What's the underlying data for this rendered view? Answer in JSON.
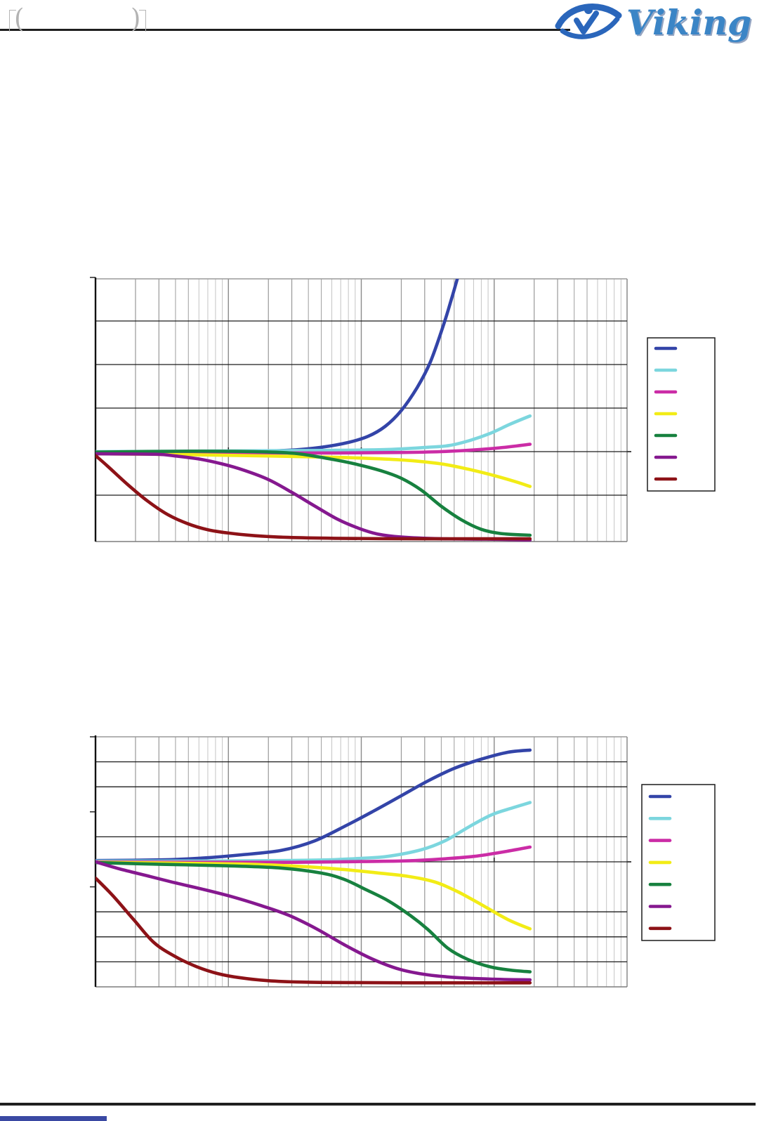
{
  "header": {
    "placeholder_brackets": "( )",
    "logo_text": "Viking",
    "logo_text_color": "#3b85c6",
    "logo_icon_color": "#2a66bb"
  },
  "footer": {
    "rule_color": "#1f1f1f",
    "accent_bar_color": "#3a49a3"
  },
  "chart_data": [
    {
      "type": "line",
      "title": "",
      "xlabel": "",
      "ylabel": "",
      "x_axis": {
        "scale": "log",
        "decades": 4,
        "tick_labels_visible": false,
        "axis_tick_decades": [
          1,
          2,
          3
        ]
      },
      "y_axis": {
        "divisions_above_zero": 4,
        "divisions_below_zero": 2,
        "gridline_divisions": [
          3,
          2,
          1,
          0,
          -1
        ],
        "left_tick_divisions": [
          4
        ],
        "right_tick_divisions": [
          0
        ],
        "tick_labels_visible": false
      },
      "grid": true,
      "legend_position": "right",
      "legend_labels": [
        "",
        "",
        "",
        "",
        "",
        "",
        ""
      ],
      "series": [
        {
          "name": "series-1-blue",
          "color": "#3344a8",
          "points": [
            [
              0,
              -0.02
            ],
            [
              0.6,
              -0.02
            ],
            [
              1.1,
              0.0
            ],
            [
              1.45,
              0.03
            ],
            [
              1.7,
              0.1
            ],
            [
              1.9,
              0.21
            ],
            [
              2.05,
              0.35
            ],
            [
              2.18,
              0.58
            ],
            [
              2.3,
              0.94
            ],
            [
              2.42,
              1.47
            ],
            [
              2.52,
              2.06
            ],
            [
              2.62,
              2.92
            ],
            [
              2.68,
              3.52
            ],
            [
              2.73,
              4.05
            ]
          ]
        },
        {
          "name": "series-2-cyan",
          "color": "#7cd6de",
          "points": [
            [
              0,
              0.0
            ],
            [
              1.2,
              0.02
            ],
            [
              1.8,
              0.03
            ],
            [
              2.2,
              0.05
            ],
            [
              2.5,
              0.1
            ],
            [
              2.66,
              0.14
            ],
            [
              2.82,
              0.26
            ],
            [
              2.97,
              0.42
            ],
            [
              3.12,
              0.63
            ],
            [
              3.27,
              0.82
            ]
          ]
        },
        {
          "name": "series-3-magenta",
          "color": "#cb2ca6",
          "points": [
            [
              0,
              -0.03
            ],
            [
              1.0,
              -0.03
            ],
            [
              1.8,
              -0.03
            ],
            [
              2.3,
              -0.02
            ],
            [
              2.6,
              0.0
            ],
            [
              2.85,
              0.04
            ],
            [
              3.05,
              0.09
            ],
            [
              3.27,
              0.17
            ]
          ]
        },
        {
          "name": "series-4-yellow",
          "color": "#f2ec16",
          "points": [
            [
              0,
              -0.05
            ],
            [
              0.7,
              -0.07
            ],
            [
              1.3,
              -0.1
            ],
            [
              1.8,
              -0.13
            ],
            [
              2.1,
              -0.16
            ],
            [
              2.35,
              -0.2
            ],
            [
              2.6,
              -0.28
            ],
            [
              2.8,
              -0.4
            ],
            [
              3.0,
              -0.55
            ],
            [
              3.15,
              -0.68
            ],
            [
              3.27,
              -0.8
            ]
          ]
        },
        {
          "name": "series-5-green",
          "color": "#17813f",
          "points": [
            [
              0,
              -0.01
            ],
            [
              0.7,
              0.01
            ],
            [
              1.2,
              0.0
            ],
            [
              1.5,
              -0.04
            ],
            [
              1.75,
              -0.16
            ],
            [
              1.95,
              -0.28
            ],
            [
              2.15,
              -0.44
            ],
            [
              2.3,
              -0.61
            ],
            [
              2.45,
              -0.88
            ],
            [
              2.6,
              -1.25
            ],
            [
              2.75,
              -1.56
            ],
            [
              2.9,
              -1.78
            ],
            [
              3.05,
              -1.88
            ],
            [
              3.27,
              -1.92
            ]
          ]
        },
        {
          "name": "series-6-purple",
          "color": "#85188f",
          "points": [
            [
              0,
              -0.05
            ],
            [
              0.45,
              -0.06
            ],
            [
              0.6,
              -0.1
            ],
            [
              0.78,
              -0.17
            ],
            [
              0.95,
              -0.28
            ],
            [
              1.12,
              -0.43
            ],
            [
              1.3,
              -0.64
            ],
            [
              1.48,
              -0.94
            ],
            [
              1.65,
              -1.25
            ],
            [
              1.82,
              -1.55
            ],
            [
              1.98,
              -1.76
            ],
            [
              2.12,
              -1.89
            ],
            [
              2.3,
              -1.96
            ],
            [
              2.6,
              -2.0
            ],
            [
              2.95,
              -2.01
            ],
            [
              3.27,
              -2.03
            ]
          ]
        },
        {
          "name": "series-7-darkred",
          "color": "#8d1217",
          "points": [
            [
              0,
              -0.09
            ],
            [
              0.09,
              -0.33
            ],
            [
              0.24,
              -0.75
            ],
            [
              0.39,
              -1.13
            ],
            [
              0.54,
              -1.44
            ],
            [
              0.69,
              -1.65
            ],
            [
              0.84,
              -1.79
            ],
            [
              1.0,
              -1.87
            ],
            [
              1.2,
              -1.93
            ],
            [
              1.45,
              -1.97
            ],
            [
              1.8,
              -1.99
            ],
            [
              2.3,
              -2.0
            ],
            [
              2.8,
              -2.0
            ],
            [
              3.27,
              -2.0
            ]
          ]
        }
      ]
    },
    {
      "type": "line",
      "title": "",
      "xlabel": "",
      "ylabel": "",
      "x_axis": {
        "scale": "log",
        "decades": 4,
        "tick_labels_visible": false,
        "axis_tick_decades": [
          1,
          2,
          3
        ]
      },
      "y_axis": {
        "divisions_above_zero": 5,
        "divisions_below_zero": 5,
        "gridline_divisions": [
          4,
          3,
          1,
          0,
          -2,
          -3,
          -4
        ],
        "left_tick_divisions": [
          5,
          2,
          -1
        ],
        "right_tick_divisions": [
          0
        ],
        "tick_labels_visible": false
      },
      "grid": true,
      "legend_position": "right",
      "legend_labels": [
        "",
        "",
        "",
        "",
        "",
        "",
        ""
      ],
      "series": [
        {
          "name": "series-1-blue",
          "color": "#3344a8",
          "points": [
            [
              0,
              0.05
            ],
            [
              0.5,
              0.08
            ],
            [
              0.8,
              0.15
            ],
            [
              1.1,
              0.28
            ],
            [
              1.4,
              0.46
            ],
            [
              1.65,
              0.84
            ],
            [
              1.9,
              1.49
            ],
            [
              2.1,
              2.05
            ],
            [
              2.3,
              2.64
            ],
            [
              2.5,
              3.23
            ],
            [
              2.7,
              3.74
            ],
            [
              2.9,
              4.1
            ],
            [
              3.1,
              4.38
            ],
            [
              3.27,
              4.47
            ]
          ]
        },
        {
          "name": "series-2-cyan",
          "color": "#7cd6de",
          "points": [
            [
              0,
              0.03
            ],
            [
              0.8,
              0.03
            ],
            [
              1.4,
              0.05
            ],
            [
              1.75,
              0.08
            ],
            [
              2.0,
              0.14
            ],
            [
              2.2,
              0.22
            ],
            [
              2.45,
              0.48
            ],
            [
              2.63,
              0.84
            ],
            [
              2.81,
              1.4
            ],
            [
              2.98,
              1.88
            ],
            [
              3.14,
              2.16
            ],
            [
              3.27,
              2.37
            ]
          ]
        },
        {
          "name": "series-3-magenta",
          "color": "#cb2ca6",
          "points": [
            [
              0,
              0.0
            ],
            [
              0.8,
              -0.02
            ],
            [
              1.5,
              -0.02
            ],
            [
              2.0,
              0.01
            ],
            [
              2.35,
              0.04
            ],
            [
              2.6,
              0.11
            ],
            [
              2.85,
              0.22
            ],
            [
              3.05,
              0.38
            ],
            [
              3.27,
              0.59
            ]
          ]
        },
        {
          "name": "series-4-yellow",
          "color": "#f2ec16",
          "points": [
            [
              0,
              -0.02
            ],
            [
              0.6,
              -0.05
            ],
            [
              1.1,
              -0.09
            ],
            [
              1.5,
              -0.17
            ],
            [
              1.85,
              -0.3
            ],
            [
              2.1,
              -0.43
            ],
            [
              2.35,
              -0.58
            ],
            [
              2.55,
              -0.8
            ],
            [
              2.72,
              -1.18
            ],
            [
              2.9,
              -1.7
            ],
            [
              3.1,
              -2.3
            ],
            [
              3.27,
              -2.68
            ]
          ]
        },
        {
          "name": "series-5-green",
          "color": "#17813f",
          "points": [
            [
              0,
              -0.03
            ],
            [
              0.5,
              -0.1
            ],
            [
              1.0,
              -0.16
            ],
            [
              1.4,
              -0.25
            ],
            [
              1.7,
              -0.45
            ],
            [
              1.87,
              -0.7
            ],
            [
              2.03,
              -1.1
            ],
            [
              2.2,
              -1.55
            ],
            [
              2.37,
              -2.15
            ],
            [
              2.5,
              -2.7
            ],
            [
              2.65,
              -3.45
            ],
            [
              2.8,
              -3.9
            ],
            [
              2.97,
              -4.2
            ],
            [
              3.12,
              -4.33
            ],
            [
              3.27,
              -4.4
            ]
          ]
        },
        {
          "name": "series-6-purple",
          "color": "#85188f",
          "points": [
            [
              0,
              0.0
            ],
            [
              0.18,
              -0.28
            ],
            [
              0.39,
              -0.56
            ],
            [
              0.6,
              -0.84
            ],
            [
              0.81,
              -1.1
            ],
            [
              1.03,
              -1.4
            ],
            [
              1.24,
              -1.74
            ],
            [
              1.45,
              -2.13
            ],
            [
              1.66,
              -2.67
            ],
            [
              1.87,
              -3.31
            ],
            [
              2.08,
              -3.88
            ],
            [
              2.29,
              -4.3
            ],
            [
              2.5,
              -4.52
            ],
            [
              2.72,
              -4.63
            ],
            [
              2.98,
              -4.69
            ],
            [
              3.27,
              -4.72
            ]
          ]
        },
        {
          "name": "series-7-darkred",
          "color": "#8d1217",
          "points": [
            [
              0,
              -0.65
            ],
            [
              0.13,
              -1.35
            ],
            [
              0.29,
              -2.33
            ],
            [
              0.44,
              -3.23
            ],
            [
              0.6,
              -3.79
            ],
            [
              0.76,
              -4.19
            ],
            [
              0.92,
              -4.47
            ],
            [
              1.08,
              -4.63
            ],
            [
              1.29,
              -4.75
            ],
            [
              1.55,
              -4.81
            ],
            [
              1.9,
              -4.83
            ],
            [
              2.4,
              -4.84
            ],
            [
              2.9,
              -4.84
            ],
            [
              3.27,
              -4.84
            ]
          ]
        }
      ]
    }
  ]
}
